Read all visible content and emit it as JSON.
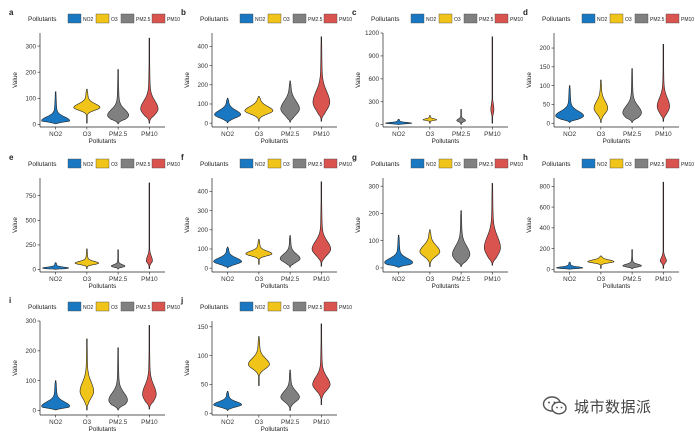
{
  "legend_title": "Pollutants",
  "xlabel": "Pollutants",
  "ylabel": "Value",
  "pollutants": [
    "NO2",
    "O3",
    "PM2.5",
    "PM10"
  ],
  "colors": {
    "NO2": "#1a78c2",
    "O3": "#f0c419",
    "PM2.5": "#808080",
    "PM10": "#d9534f"
  },
  "watermark": "城市数据派",
  "chart_data": [
    {
      "type": "violin",
      "label": "a",
      "ylim": [
        -10,
        350
      ],
      "yticks": [
        0,
        100,
        200,
        300
      ],
      "series": [
        {
          "name": "NO2",
          "min": 2,
          "max": 125,
          "mode": 15,
          "spread": 14,
          "maxwidth": 0.45
        },
        {
          "name": "O3",
          "min": 5,
          "max": 135,
          "mode": 65,
          "spread": 14,
          "maxwidth": 0.42
        },
        {
          "name": "PM2.5",
          "min": 2,
          "max": 210,
          "mode": 35,
          "spread": 22,
          "maxwidth": 0.34
        },
        {
          "name": "PM10",
          "min": 5,
          "max": 330,
          "mode": 60,
          "spread": 30,
          "maxwidth": 0.28
        }
      ]
    },
    {
      "type": "violin",
      "label": "b",
      "ylim": [
        -20,
        470
      ],
      "yticks": [
        0,
        100,
        200,
        300,
        400
      ],
      "series": [
        {
          "name": "NO2",
          "min": 2,
          "max": 130,
          "mode": 45,
          "spread": 22,
          "maxwidth": 0.42
        },
        {
          "name": "O3",
          "min": 10,
          "max": 140,
          "mode": 65,
          "spread": 22,
          "maxwidth": 0.45
        },
        {
          "name": "PM2.5",
          "min": 5,
          "max": 220,
          "mode": 75,
          "spread": 40,
          "maxwidth": 0.3
        },
        {
          "name": "PM10",
          "min": 10,
          "max": 450,
          "mode": 110,
          "spread": 55,
          "maxwidth": 0.27
        }
      ]
    },
    {
      "type": "violin",
      "label": "c",
      "ylim": [
        -30,
        1200
      ],
      "yticks": [
        0,
        300,
        600,
        900,
        1200
      ],
      "series": [
        {
          "name": "NO2",
          "min": 2,
          "max": 70,
          "mode": 20,
          "spread": 10,
          "maxwidth": 0.42
        },
        {
          "name": "O3",
          "min": 20,
          "max": 120,
          "mode": 65,
          "spread": 12,
          "maxwidth": 0.22
        },
        {
          "name": "PM2.5",
          "min": 5,
          "max": 200,
          "mode": 55,
          "spread": 20,
          "maxwidth": 0.14
        },
        {
          "name": "PM10",
          "min": 20,
          "max": 1150,
          "mode": 200,
          "spread": 70,
          "maxwidth": 0.05
        }
      ]
    },
    {
      "type": "violin",
      "label": "d",
      "ylim": [
        -10,
        240
      ],
      "yticks": [
        0,
        50,
        100,
        150,
        200
      ],
      "series": [
        {
          "name": "NO2",
          "min": 2,
          "max": 100,
          "mode": 20,
          "spread": 12,
          "maxwidth": 0.45
        },
        {
          "name": "O3",
          "min": 2,
          "max": 115,
          "mode": 40,
          "spread": 18,
          "maxwidth": 0.22
        },
        {
          "name": "PM2.5",
          "min": 2,
          "max": 145,
          "mode": 28,
          "spread": 18,
          "maxwidth": 0.3
        },
        {
          "name": "PM10",
          "min": 5,
          "max": 210,
          "mode": 45,
          "spread": 22,
          "maxwidth": 0.2
        }
      ]
    },
    {
      "type": "violin",
      "label": "e",
      "ylim": [
        -25,
        930
      ],
      "yticks": [
        0,
        250,
        500,
        750
      ],
      "series": [
        {
          "name": "NO2",
          "min": 2,
          "max": 70,
          "mode": 15,
          "spread": 10,
          "maxwidth": 0.42
        },
        {
          "name": "O3",
          "min": 10,
          "max": 210,
          "mode": 65,
          "spread": 18,
          "maxwidth": 0.38
        },
        {
          "name": "PM2.5",
          "min": 5,
          "max": 200,
          "mode": 35,
          "spread": 15,
          "maxwidth": 0.22
        },
        {
          "name": "PM10",
          "min": 10,
          "max": 880,
          "mode": 90,
          "spread": 45,
          "maxwidth": 0.1
        }
      ]
    },
    {
      "type": "violin",
      "label": "f",
      "ylim": [
        -20,
        470
      ],
      "yticks": [
        0,
        100,
        200,
        300,
        400
      ],
      "series": [
        {
          "name": "NO2",
          "min": 2,
          "max": 110,
          "mode": 35,
          "spread": 18,
          "maxwidth": 0.45
        },
        {
          "name": "O3",
          "min": 20,
          "max": 150,
          "mode": 75,
          "spread": 14,
          "maxwidth": 0.42
        },
        {
          "name": "PM2.5",
          "min": 5,
          "max": 170,
          "mode": 50,
          "spread": 24,
          "maxwidth": 0.32
        },
        {
          "name": "PM10",
          "min": 10,
          "max": 450,
          "mode": 100,
          "spread": 40,
          "maxwidth": 0.3
        }
      ]
    },
    {
      "type": "violin",
      "label": "g",
      "ylim": [
        -15,
        330
      ],
      "yticks": [
        0,
        100,
        200,
        300
      ],
      "series": [
        {
          "name": "NO2",
          "min": 2,
          "max": 120,
          "mode": 20,
          "spread": 15,
          "maxwidth": 0.45
        },
        {
          "name": "O3",
          "min": 5,
          "max": 140,
          "mode": 60,
          "spread": 22,
          "maxwidth": 0.32
        },
        {
          "name": "PM2.5",
          "min": 5,
          "max": 210,
          "mode": 50,
          "spread": 30,
          "maxwidth": 0.28
        },
        {
          "name": "PM10",
          "min": 10,
          "max": 310,
          "mode": 75,
          "spread": 40,
          "maxwidth": 0.26
        }
      ]
    },
    {
      "type": "violin",
      "label": "h",
      "ylim": [
        -25,
        880
      ],
      "yticks": [
        0,
        200,
        400,
        600,
        800
      ],
      "series": [
        {
          "name": "NO2",
          "min": 2,
          "max": 70,
          "mode": 15,
          "spread": 10,
          "maxwidth": 0.42
        },
        {
          "name": "O3",
          "min": 10,
          "max": 130,
          "mode": 75,
          "spread": 16,
          "maxwidth": 0.42
        },
        {
          "name": "PM2.5",
          "min": 5,
          "max": 190,
          "mode": 35,
          "spread": 15,
          "maxwidth": 0.3
        },
        {
          "name": "PM10",
          "min": 10,
          "max": 840,
          "mode": 80,
          "spread": 35,
          "maxwidth": 0.1
        }
      ]
    },
    {
      "type": "violin",
      "label": "i",
      "ylim": [
        -15,
        300
      ],
      "yticks": [
        0,
        100,
        200,
        300
      ],
      "series": [
        {
          "name": "NO2",
          "min": 2,
          "max": 100,
          "mode": 15,
          "spread": 14,
          "maxwidth": 0.45
        },
        {
          "name": "O3",
          "min": 2,
          "max": 240,
          "mode": 65,
          "spread": 30,
          "maxwidth": 0.22
        },
        {
          "name": "PM2.5",
          "min": 2,
          "max": 210,
          "mode": 35,
          "spread": 24,
          "maxwidth": 0.3
        },
        {
          "name": "PM10",
          "min": 5,
          "max": 285,
          "mode": 55,
          "spread": 30,
          "maxwidth": 0.22
        }
      ]
    },
    {
      "type": "violin",
      "label": "j",
      "ylim": [
        -3,
        160
      ],
      "yticks": [
        0,
        50,
        100,
        150
      ],
      "series": [
        {
          "name": "NO2",
          "min": 5,
          "max": 38,
          "mode": 15,
          "spread": 5,
          "maxwidth": 0.45
        },
        {
          "name": "O3",
          "min": 48,
          "max": 133,
          "mode": 85,
          "spread": 10,
          "maxwidth": 0.34
        },
        {
          "name": "PM2.5",
          "min": 5,
          "max": 75,
          "mode": 28,
          "spread": 10,
          "maxwidth": 0.3
        },
        {
          "name": "PM10",
          "min": 15,
          "max": 155,
          "mode": 50,
          "spread": 13,
          "maxwidth": 0.28
        }
      ]
    }
  ]
}
